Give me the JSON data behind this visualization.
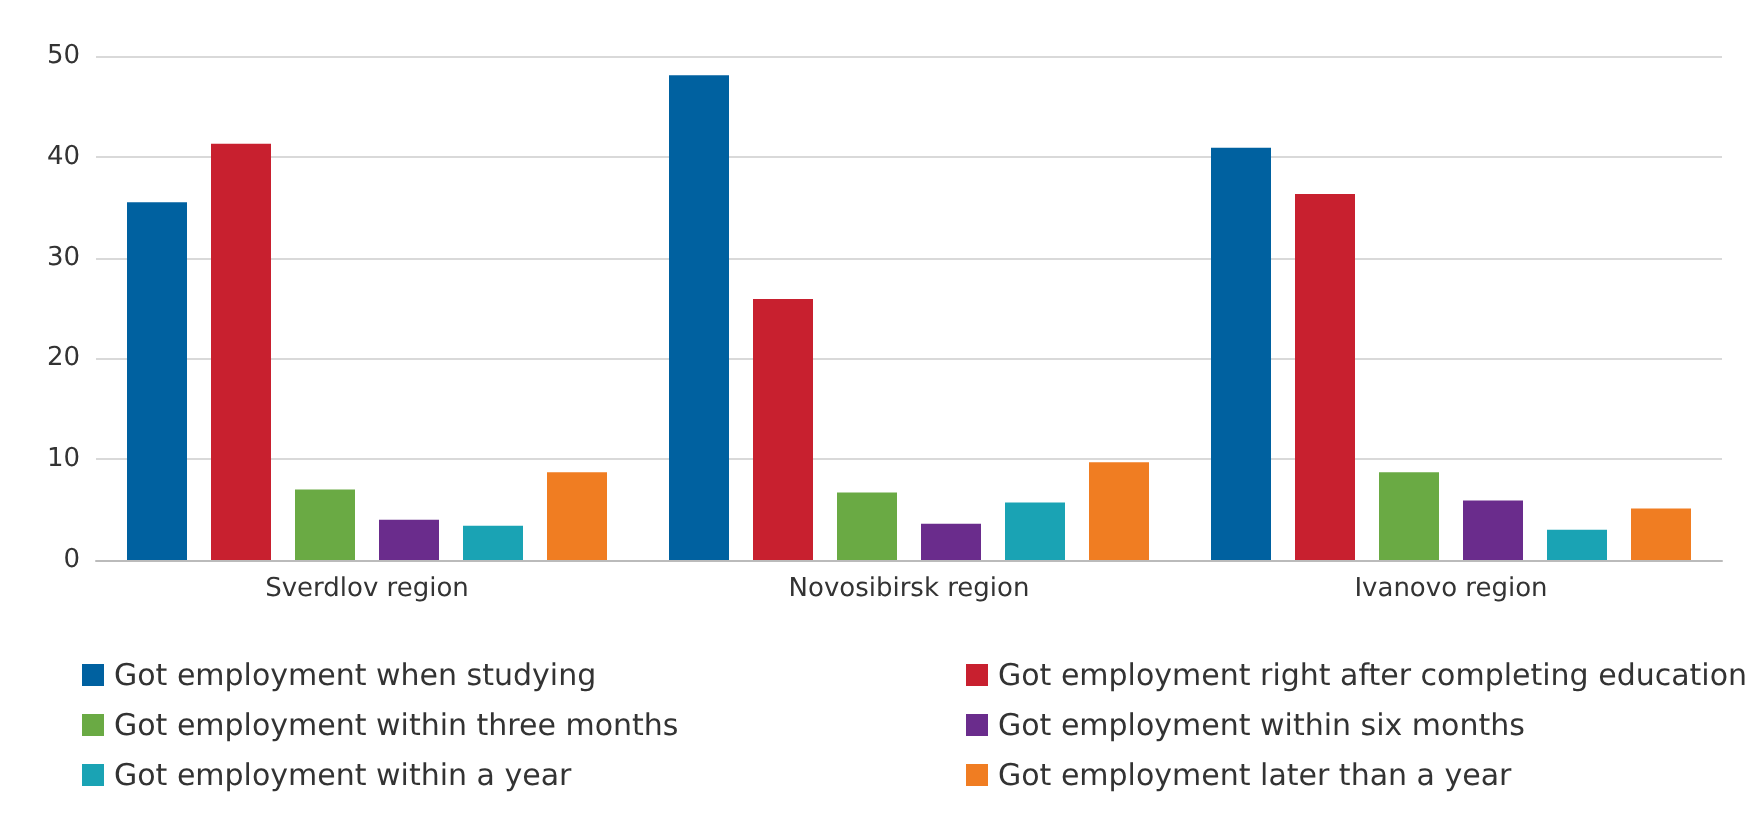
{
  "chart_data": {
    "type": "bar",
    "categories": [
      "Sverdlov region",
      "Novosibirsk region",
      "Ivanovo region"
    ],
    "series": [
      {
        "name": "Got employment when studying",
        "color": "#0061a0",
        "values": [
          35.5,
          48.1,
          40.9
        ]
      },
      {
        "name": "Got employment right after completing education",
        "color": "#c8202f",
        "values": [
          41.3,
          25.9,
          36.3
        ]
      },
      {
        "name": "Got employment within three months",
        "color": "#6aaa44",
        "values": [
          7.0,
          6.7,
          8.7
        ]
      },
      {
        "name": "Got employment within six months",
        "color": "#6a2c8c",
        "values": [
          4.0,
          3.6,
          5.9
        ]
      },
      {
        "name": "Got employment within a year",
        "color": "#1aa3b4",
        "values": [
          3.4,
          5.7,
          3.0
        ]
      },
      {
        "name": "Got employment later than a year",
        "color": "#f07d22",
        "values": [
          8.7,
          9.7,
          5.1
        ]
      }
    ],
    "ylim": [
      0,
      50
    ],
    "yticks": [
      0,
      10,
      20,
      30,
      40,
      50
    ],
    "grid": "y",
    "legend": "bottom"
  }
}
